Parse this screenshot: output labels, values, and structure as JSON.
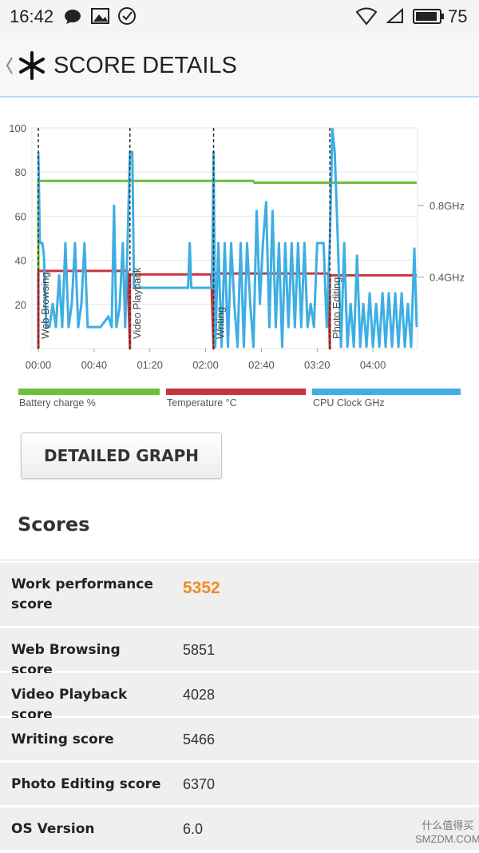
{
  "status_bar": {
    "time": "16:42",
    "battery": "75"
  },
  "header": {
    "title": "SCORE DETAILS"
  },
  "chart_data": {
    "type": "line",
    "xlim": [
      -4.6,
      272
    ],
    "ylim": [
      0,
      100
    ],
    "y2lim": [
      0,
      1.235
    ],
    "xticks": [
      {
        "value": 0,
        "label": "00:00"
      },
      {
        "value": 40,
        "label": "00:40"
      },
      {
        "value": 80,
        "label": "01:20"
      },
      {
        "value": 120,
        "label": "02:00"
      },
      {
        "value": 160,
        "label": "02:40"
      },
      {
        "value": 200,
        "label": "03:20"
      },
      {
        "value": 240,
        "label": "04:00"
      }
    ],
    "yticks": [
      20,
      40,
      60,
      80,
      100
    ],
    "y2ticks": [
      {
        "value": 0.4,
        "label": "0.4GHz"
      },
      {
        "value": 0.8,
        "label": "0.8GHz"
      }
    ],
    "grid": true,
    "markers": [
      {
        "x": 0,
        "label": "Web Browsing"
      },
      {
        "x": 65.7,
        "label": "Video Playback"
      },
      {
        "x": 125.7,
        "label": "Writing"
      },
      {
        "x": 209.1,
        "label": "Photo Editing"
      }
    ],
    "series": [
      {
        "name": "Battery charge %",
        "color": "#6cbf3a",
        "x": [
          0,
          0,
          154,
          155,
          271.4
        ],
        "values": [
          0,
          76,
          76,
          75.2,
          75.2
        ]
      },
      {
        "name": "Temperature °C",
        "color": "#c8343a",
        "x": [
          0,
          0,
          64,
          65.7,
          65.7,
          124,
          125.7,
          125.7,
          208,
          209.1,
          209.1,
          271.4
        ],
        "values": [
          0,
          35.2,
          35.2,
          0,
          33.6,
          33.6,
          0,
          34,
          34,
          0,
          33.2,
          33.2
        ]
      },
      {
        "name": "CPU Clock GHz",
        "color": "#3eaee3",
        "axis": "y2",
        "x": [
          0,
          1.1,
          2.9,
          4,
          5.7,
          8,
          10.3,
          12.6,
          14.9,
          17.1,
          19.4,
          21.7,
          24,
          26.3,
          28.6,
          30.9,
          33.1,
          35.4,
          44.6,
          50.3,
          52.6,
          54.3,
          56,
          58.3,
          60.6,
          62.3,
          64,
          65.7,
          67.4,
          68.6,
          107.4,
          108.6,
          109.7,
          124.6,
          125.7,
          126.9,
          129.1,
          131.4,
          133.7,
          136,
          138.3,
          140.6,
          142.9,
          145.1,
          147.4,
          149.7,
          152,
          154.3,
          156.6,
          158.9,
          161.1,
          163.4,
          165.7,
          168,
          170.3,
          172.6,
          174.9,
          177.1,
          179.4,
          181.7,
          184,
          186.3,
          188.6,
          190.9,
          193.1,
          195.4,
          197.7,
          200,
          204.6,
          206.9,
          209.1,
          210.9,
          212.6,
          214.9,
          217.1,
          219.4,
          221.7,
          224,
          226.3,
          228.6,
          230.9,
          233.1,
          235.4,
          237.7,
          240,
          242.3,
          244.6,
          246.9,
          249.1,
          251.4,
          253.7,
          256,
          258.3,
          260.6,
          262.9,
          265.1,
          267.4,
          269.7,
          271.4
        ],
        "values": [
          1.1,
          0.59,
          0.59,
          0.52,
          0.12,
          0.12,
          0.25,
          0.12,
          0.41,
          0.12,
          0.59,
          0.12,
          0.25,
          0.59,
          0.12,
          0.25,
          0.59,
          0.12,
          0.12,
          0.18,
          0.12,
          0.8,
          0.12,
          0.23,
          0.59,
          0.12,
          0.59,
          1.1,
          1.1,
          0.34,
          0.34,
          0.59,
          0.34,
          0.34,
          1.1,
          0.01,
          0.59,
          0.01,
          0.59,
          0.01,
          0.59,
          0.25,
          0.01,
          0.59,
          0.01,
          0.59,
          0.25,
          0.01,
          0.77,
          0.25,
          0.59,
          0.82,
          0.12,
          0.77,
          0.12,
          0.59,
          0.01,
          0.59,
          0.12,
          0.59,
          0.12,
          0.59,
          0.12,
          0.59,
          0.12,
          0.25,
          0.12,
          0.59,
          0.59,
          0.12,
          0.59,
          1.23,
          1.1,
          0.59,
          0.01,
          0.59,
          0.01,
          0.25,
          0.01,
          0.52,
          0.01,
          0.25,
          0.01,
          0.31,
          0.01,
          0.25,
          0.01,
          0.31,
          0.01,
          0.31,
          0.01,
          0.31,
          0.01,
          0.31,
          0.01,
          0.25,
          0.01,
          0.56,
          0.12
        ]
      }
    ]
  },
  "button": {
    "label": "DETAILED GRAPH"
  },
  "scores": {
    "title": "Scores",
    "rows": [
      [
        "Work performance score",
        "5352"
      ],
      [
        "Web Browsing score",
        "5851"
      ],
      [
        "Video Playback score",
        "4028"
      ],
      [
        "Writing score",
        "5466"
      ],
      [
        "Photo Editing score",
        "6370"
      ],
      [
        "OS Version",
        "6.0"
      ]
    ]
  },
  "watermark": [
    "什么值得买",
    "SMZDM.COM"
  ]
}
